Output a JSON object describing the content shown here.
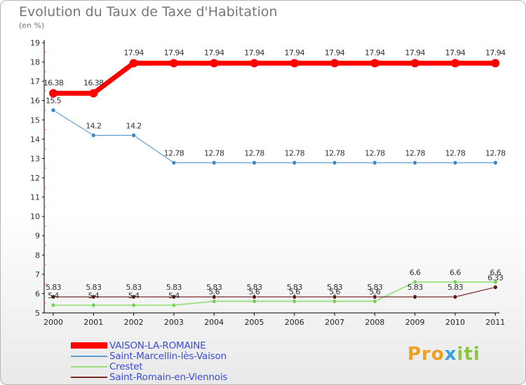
{
  "chart_data": {
    "type": "line",
    "title": "Evolution du Taux de Taxe d'Habitation",
    "subtitle": "(en %)",
    "x": [
      "2000",
      "2001",
      "2002",
      "2003",
      "2004",
      "2005",
      "2006",
      "2007",
      "2008",
      "2009",
      "2010",
      "2011"
    ],
    "ylim": [
      5,
      19
    ],
    "yticks": [
      5,
      6,
      7,
      8,
      9,
      10,
      11,
      12,
      13,
      14,
      15,
      16,
      17,
      18,
      19
    ],
    "grid": false,
    "legend_position": "bottom-left",
    "series": [
      {
        "name": "VAISON-LA-ROMAINE",
        "color": "#ff0000",
        "values": [
          16.38,
          16.38,
          17.94,
          17.94,
          17.94,
          17.94,
          17.94,
          17.94,
          17.94,
          17.94,
          17.94,
          17.94
        ],
        "labels": [
          "16.38",
          "16.38",
          "17.94",
          "17.94",
          "17.94",
          "17.94",
          "17.94",
          "17.94",
          "17.94",
          "17.94",
          "17.94",
          "17.94"
        ]
      },
      {
        "name": "Saint-Marcellin-lès-Vaison",
        "color": "#5d9fd0",
        "values": [
          15.5,
          14.2,
          14.2,
          12.78,
          12.78,
          12.78,
          12.78,
          12.78,
          12.78,
          12.78,
          12.78,
          12.78
        ],
        "labels": [
          "15.5",
          "14.2",
          "14.2",
          "12.78",
          "12.78",
          "12.78",
          "12.78",
          "12.78",
          "12.78",
          "12.78",
          "12.78",
          "12.78"
        ]
      },
      {
        "name": "Crestet",
        "color": "#99e07e",
        "values": [
          5.4,
          5.4,
          5.4,
          5.4,
          5.6,
          5.6,
          5.6,
          5.6,
          5.6,
          6.6,
          6.6,
          6.6
        ],
        "labels": [
          "5.4",
          "5.4",
          "5.4",
          "5.4",
          "5.6",
          "5.6",
          "5.6",
          "5.6",
          "5.6",
          "6.6",
          "6.6",
          "6.6"
        ]
      },
      {
        "name": "Saint-Romain-en-Viennois",
        "color": "#7a2a2a",
        "values": [
          5.83,
          5.83,
          5.83,
          5.83,
          5.83,
          5.83,
          5.83,
          5.83,
          5.83,
          5.83,
          5.83,
          6.33
        ],
        "labels": [
          "5.83",
          "5.83",
          "5.83",
          "5.83",
          "5.83",
          "5.83",
          "5.83",
          "5.83",
          "5.83",
          "5.83",
          "5.83",
          "6.33"
        ]
      }
    ]
  },
  "logo": {
    "text_a": "Pro",
    "text_b": "x",
    "text_c": "iti"
  }
}
